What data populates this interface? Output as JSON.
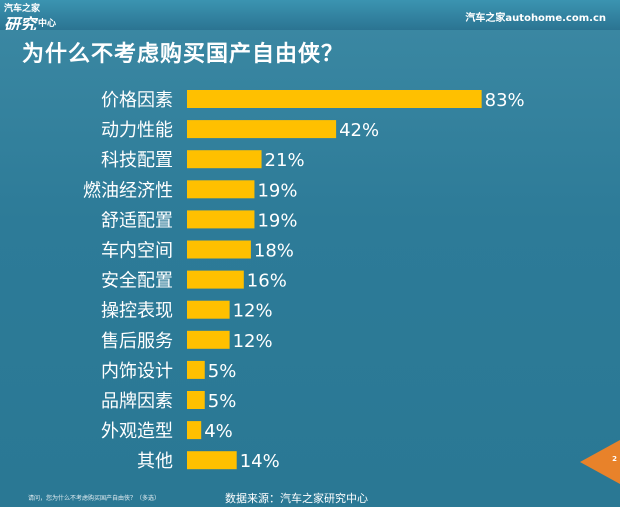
{
  "header": {
    "logo_line1": "汽车之家",
    "logo_line2": "研究",
    "logo_line3": "中心",
    "site": "汽车之家autohome.com.cn"
  },
  "colors": {
    "bar": "#ffc000",
    "background": "#2f7d99",
    "text": "#ffffff",
    "corner": "#e8822a"
  },
  "footer": {
    "note": "请问，您为什么不考虑购买国产自由侠？（多选）",
    "source": "数据来源：汽车之家研究中心",
    "page_number": "2"
  },
  "chart_data": {
    "type": "bar",
    "orientation": "horizontal",
    "title": "为什么不考虑购买国产自由侠？",
    "categories": [
      "价格因素",
      "动力性能",
      "科技配置",
      "燃油经济性",
      "舒适配置",
      "车内空间",
      "安全配置",
      "操控表现",
      "售后服务",
      "内饰设计",
      "品牌因素",
      "外观造型",
      "其他"
    ],
    "values": [
      83,
      42,
      21,
      19,
      19,
      18,
      16,
      12,
      12,
      5,
      5,
      4,
      14
    ],
    "value_labels": [
      "83%",
      "42%",
      "21%",
      "19%",
      "19%",
      "18%",
      "16%",
      "12%",
      "12%",
      "5%",
      "5%",
      "4%",
      "14%"
    ],
    "unit": "%",
    "xlim": [
      0,
      100
    ],
    "grid": false,
    "legend": "none"
  }
}
